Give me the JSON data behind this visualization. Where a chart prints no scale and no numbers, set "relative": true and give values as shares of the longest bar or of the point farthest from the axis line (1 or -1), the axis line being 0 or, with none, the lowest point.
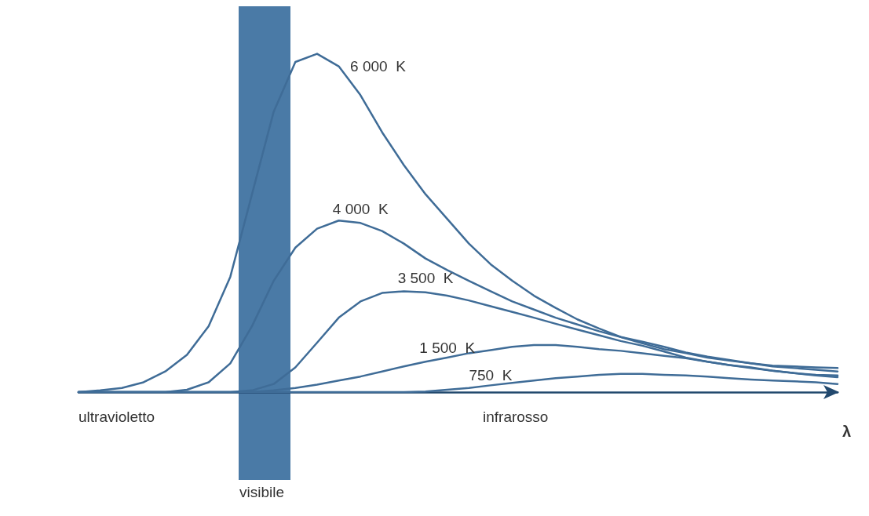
{
  "chart_data": {
    "type": "line",
    "relative": true,
    "xlabel": "λ",
    "categories": [
      null,
      null,
      null,
      null,
      null,
      null,
      null,
      null,
      null,
      null,
      null,
      null,
      null,
      null,
      null,
      null,
      null,
      null,
      null,
      null,
      null,
      null,
      null,
      null,
      null,
      null,
      null,
      null,
      null,
      null,
      null,
      null,
      null,
      null,
      null,
      null
    ],
    "series": [
      {
        "name": "6 000  K",
        "color": "#3f6c97",
        "values": [
          0,
          0.005,
          0.012,
          0.029,
          0.061,
          0.11,
          0.195,
          0.341,
          0.585,
          0.829,
          0.976,
          1,
          0.963,
          0.878,
          0.768,
          0.671,
          0.585,
          0.512,
          0.439,
          0.378,
          0.329,
          0.285,
          0.249,
          0.215,
          0.188,
          0.163,
          0.144,
          0.127,
          0.115,
          0.102,
          0.093,
          0.085,
          0.078,
          0.076,
          0.073,
          0.071
        ]
      },
      {
        "name": "4 000  K",
        "color": "#3f6c97",
        "values": [
          0,
          0,
          0,
          0,
          0,
          0.007,
          0.029,
          0.085,
          0.195,
          0.329,
          0.427,
          0.483,
          0.507,
          0.5,
          0.476,
          0.439,
          0.395,
          0.361,
          0.329,
          0.298,
          0.268,
          0.244,
          0.22,
          0.2,
          0.18,
          0.163,
          0.149,
          0.134,
          0.117,
          0.105,
          0.095,
          0.085,
          0.076,
          0.071,
          0.066,
          0.061
        ]
      },
      {
        "name": "3 500  K",
        "color": "#3f6c97",
        "values": [
          0,
          0,
          0,
          0,
          0,
          0,
          0,
          0,
          0.005,
          0.024,
          0.073,
          0.146,
          0.22,
          0.268,
          0.293,
          0.298,
          0.295,
          0.285,
          0.271,
          0.254,
          0.237,
          0.22,
          0.202,
          0.185,
          0.168,
          0.151,
          0.137,
          0.12,
          0.102,
          0.09,
          0.08,
          0.071,
          0.063,
          0.056,
          0.051,
          0.049
        ]
      },
      {
        "name": "1 500  K",
        "color": "#3f6c97",
        "values": [
          0,
          0,
          0,
          0,
          0,
          0,
          0,
          0,
          0,
          0.005,
          0.012,
          0.022,
          0.034,
          0.046,
          0.061,
          0.076,
          0.09,
          0.102,
          0.115,
          0.124,
          0.134,
          0.139,
          0.139,
          0.134,
          0.127,
          0.122,
          0.115,
          0.107,
          0.1,
          0.09,
          0.08,
          0.073,
          0.063,
          0.056,
          0.049,
          0.044
        ]
      },
      {
        "name": "750  K",
        "color": "#3f6c97",
        "values": [
          0,
          0,
          0,
          0,
          0,
          0,
          0,
          0,
          0,
          0,
          0,
          0,
          0,
          0,
          0,
          0,
          0.002,
          0.007,
          0.012,
          0.02,
          0.027,
          0.034,
          0.041,
          0.046,
          0.051,
          0.054,
          0.054,
          0.051,
          0.049,
          0.046,
          0.041,
          0.037,
          0.034,
          0.032,
          0.029,
          0.024
        ]
      }
    ],
    "annotations": [
      "ultravioletto",
      "infrarosso",
      "visibile"
    ],
    "grid": false,
    "legend": false,
    "marker": "none",
    "line_style": "solid"
  }
}
